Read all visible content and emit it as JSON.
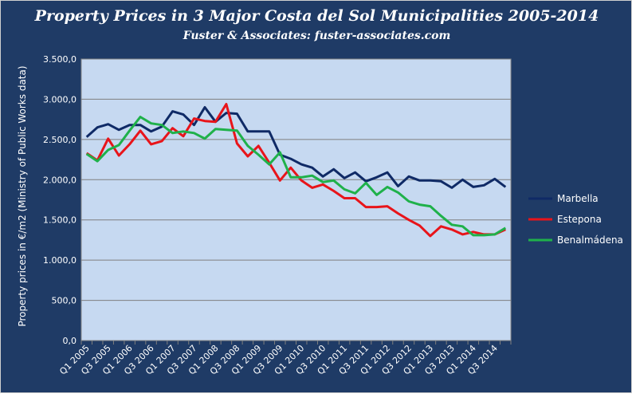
{
  "chart_data": {
    "type": "line",
    "title": "Property Prices in 3 Major Costa del Sol Municipalities 2005-2014",
    "subtitle": "Fuster & Associates: fuster-associates.com",
    "ylabel": "Property prices in €/m2 (Ministry of Public Works data)",
    "xlabel": "",
    "ylim": [
      0,
      3500
    ],
    "ytick_labels": [
      "0,0",
      "500,0",
      "1.000,0",
      "1.500,0",
      "2.000,0",
      "2.500,0",
      "3.000,0",
      "3.500,0"
    ],
    "grid": true,
    "legend_position": "right",
    "plot_background": "#c6d9f1",
    "x": [
      "Q1 2005",
      "Q2 2005",
      "Q3 2005",
      "Q4 2005",
      "Q1 2006",
      "Q2 2006",
      "Q3 2006",
      "Q4 2006",
      "Q1 2007",
      "Q2 2007",
      "Q3 2007",
      "Q4 2007",
      "Q1 2008",
      "Q2 2008",
      "Q3 2008",
      "Q4 2008",
      "Q1 2009",
      "Q2 2009",
      "Q3 2009",
      "Q4 2009",
      "Q1 2010",
      "Q2 2010",
      "Q3 2010",
      "Q4 2010",
      "Q1 2011",
      "Q2 2011",
      "Q3 2011",
      "Q4 2011",
      "Q1 2012",
      "Q2 2012",
      "Q3 2012",
      "Q4 2012",
      "Q1 2013",
      "Q2 2013",
      "Q3 2013",
      "Q4 2013",
      "Q1 2014",
      "Q2 2014",
      "Q3 2014",
      "Q4 2014"
    ],
    "x_tick_labels": [
      "Q1 2005",
      "Q3 2005",
      "Q1 2006",
      "Q3 2006",
      "Q1 2007",
      "Q3 2007",
      "Q1 2008",
      "Q3 2008",
      "Q1 2009",
      "Q3 2009",
      "Q1 2010",
      "Q3 2010",
      "Q1 2011",
      "Q3 2011",
      "Q1 2012",
      "Q3 2012",
      "Q1 2013",
      "Q3 2013",
      "Q1 2014",
      "Q3 2014"
    ],
    "series": [
      {
        "name": "Marbella",
        "color": "#0f2a66",
        "values": [
          2530,
          2650,
          2690,
          2620,
          2680,
          2680,
          2600,
          2660,
          2850,
          2810,
          2680,
          2900,
          2720,
          2830,
          2820,
          2600,
          2600,
          2600,
          2310,
          2260,
          2190,
          2150,
          2040,
          2130,
          2020,
          2090,
          1980,
          2030,
          2090,
          1920,
          2040,
          1990,
          1990,
          1980,
          1900,
          2000,
          1910,
          1930,
          2010,
          1910
        ]
      },
      {
        "name": "Estepona",
        "color": "#e8141a",
        "values": [
          2330,
          2240,
          2510,
          2300,
          2440,
          2610,
          2440,
          2480,
          2640,
          2540,
          2760,
          2730,
          2720,
          2940,
          2450,
          2290,
          2420,
          2210,
          1990,
          2150,
          1990,
          1900,
          1940,
          1860,
          1770,
          1770,
          1660,
          1660,
          1670,
          1580,
          1500,
          1430,
          1300,
          1420,
          1380,
          1320,
          1350,
          1320,
          1320,
          1380
        ]
      },
      {
        "name": "Benalmádena",
        "color": "#1fb14a",
        "values": [
          2320,
          2230,
          2370,
          2430,
          2610,
          2780,
          2700,
          2680,
          2580,
          2600,
          2580,
          2510,
          2630,
          2620,
          2610,
          2420,
          2310,
          2190,
          2340,
          2030,
          2030,
          2050,
          1970,
          1990,
          1880,
          1830,
          1960,
          1810,
          1910,
          1840,
          1730,
          1690,
          1670,
          1550,
          1440,
          1420,
          1310,
          1310,
          1320,
          1400
        ]
      }
    ]
  }
}
